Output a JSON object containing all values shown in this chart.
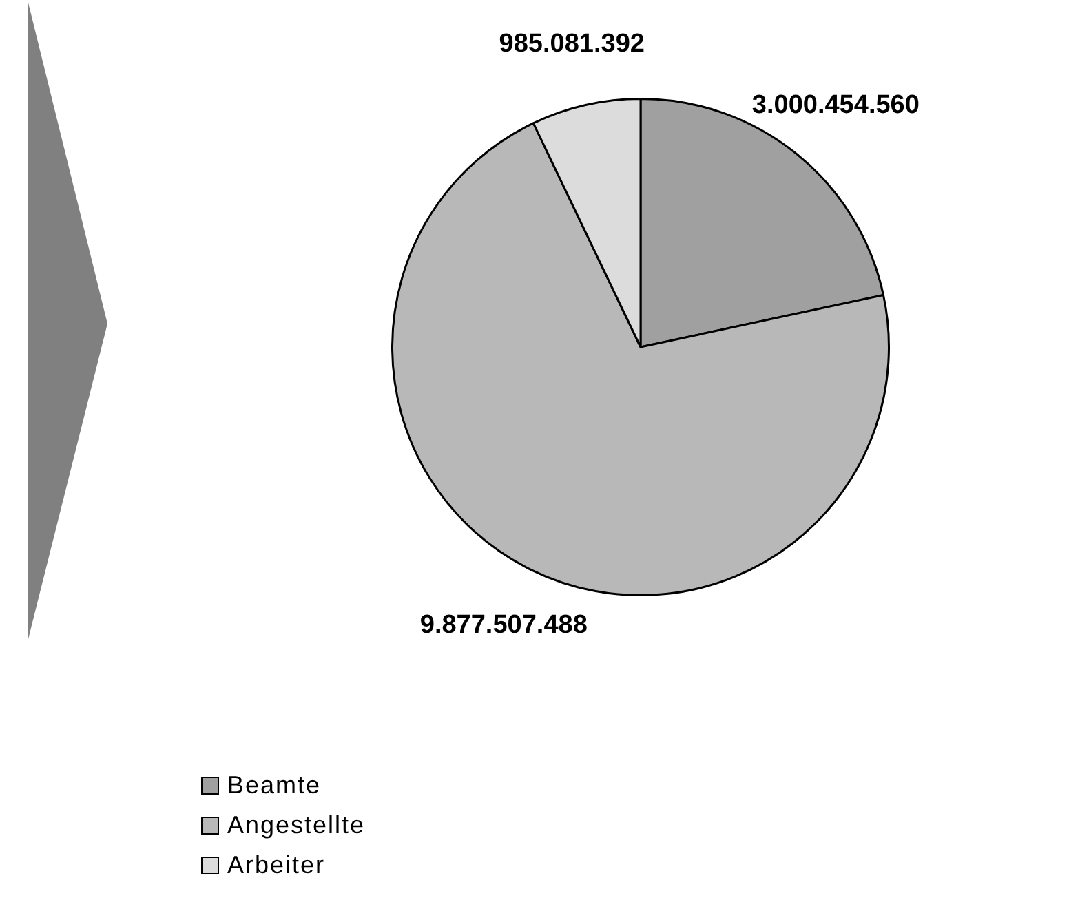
{
  "chart_data": {
    "type": "pie",
    "categories": [
      "Beamte",
      "Angestellte",
      "Arbeiter"
    ],
    "values": [
      3000454560,
      9877507488,
      985081392
    ],
    "colors": [
      "#a0a0a0",
      "#b8b8b8",
      "#dcdcdc"
    ],
    "value_labels": [
      "3.000.454.560",
      "9.877.507.488",
      "985.081.392"
    ],
    "legend": "bottom"
  }
}
